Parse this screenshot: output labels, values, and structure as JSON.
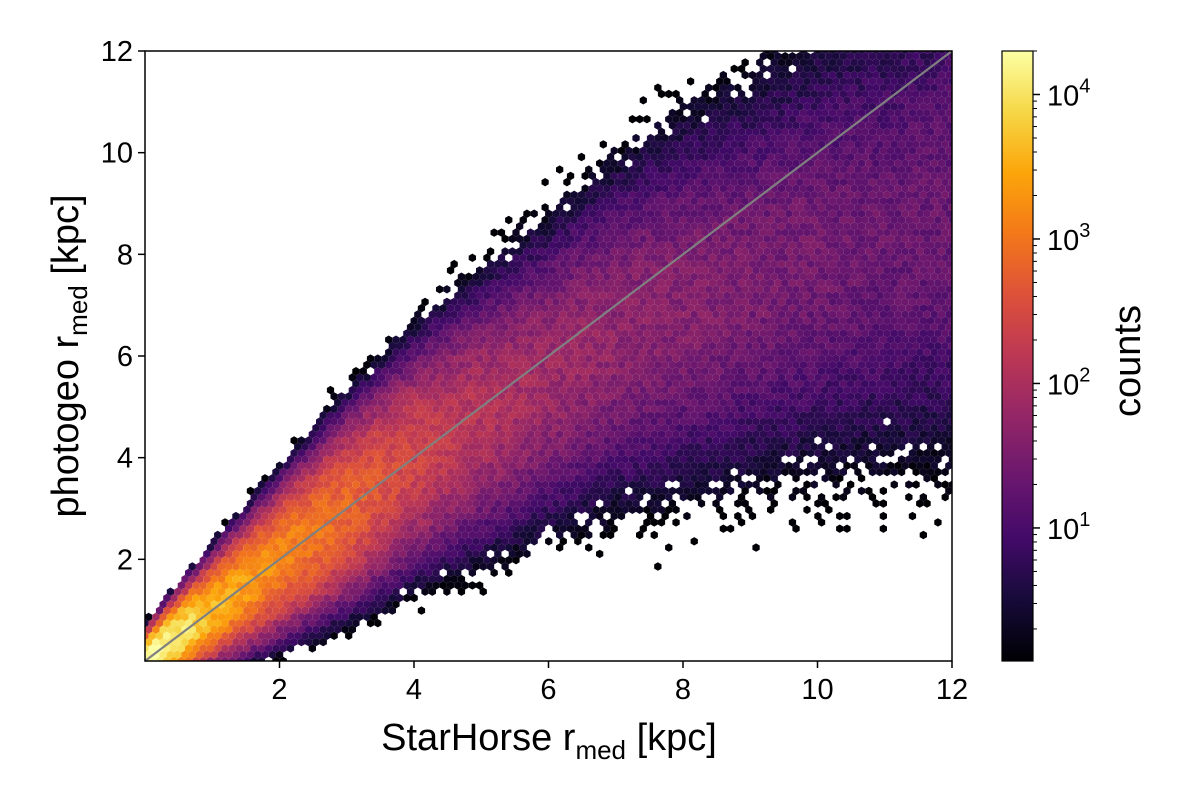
{
  "chart_data": {
    "type": "heatmap",
    "subtype": "hexbin-2d-histogram",
    "title": "",
    "xlabel": {
      "main": "StarHorse r",
      "sub": "med",
      "unit": " [kpc]"
    },
    "ylabel": {
      "main": "photogeo r",
      "sub": "med",
      "unit": " [kpc]"
    },
    "xlim": [
      0,
      12
    ],
    "ylim": [
      0,
      12
    ],
    "x_ticks": [
      {
        "value": 2,
        "label": "2"
      },
      {
        "value": 4,
        "label": "4"
      },
      {
        "value": 6,
        "label": "6"
      },
      {
        "value": 8,
        "label": "8"
      },
      {
        "value": 10,
        "label": "10"
      },
      {
        "value": 12,
        "label": "12"
      }
    ],
    "y_ticks": [
      {
        "value": 2,
        "label": "2"
      },
      {
        "value": 4,
        "label": "4"
      },
      {
        "value": 6,
        "label": "6"
      },
      {
        "value": 8,
        "label": "8"
      },
      {
        "value": 10,
        "label": "10"
      },
      {
        "value": 12,
        "label": "12"
      }
    ],
    "reference_line": {
      "from": [
        0,
        0
      ],
      "to": [
        12,
        12
      ],
      "color": "#808080"
    },
    "colorbar": {
      "label": "counts",
      "scale": "log",
      "colormap": "inferno",
      "range": [
        1.2,
        20000
      ],
      "ticks": [
        {
          "value": 10,
          "base": "10",
          "exp": "1"
        },
        {
          "value": 100,
          "base": "10",
          "exp": "2"
        },
        {
          "value": 1000,
          "base": "10",
          "exp": "3"
        },
        {
          "value": 10000,
          "base": "10",
          "exp": "4"
        }
      ]
    },
    "density_summary": {
      "peak_count": 20000,
      "ridge": "counts concentrate along the one-to-one line, highest near (0.5, 0.5) kpc and decreasing with distance; scatter grows with distance",
      "ridge_points": [
        {
          "x": 0.3,
          "y": 0.3,
          "count": 20000
        },
        {
          "x": 1.0,
          "y": 1.0,
          "count": 4000
        },
        {
          "x": 2.0,
          "y": 2.0,
          "count": 1500
        },
        {
          "x": 3.0,
          "y": 3.0,
          "count": 700
        },
        {
          "x": 4.0,
          "y": 4.0,
          "count": 250
        },
        {
          "x": 5.0,
          "y": 4.8,
          "count": 120
        },
        {
          "x": 6.0,
          "y": 5.6,
          "count": 70
        },
        {
          "x": 7.0,
          "y": 6.4,
          "count": 50
        },
        {
          "x": 8.0,
          "y": 7.0,
          "count": 40
        },
        {
          "x": 9.0,
          "y": 7.5,
          "count": 30
        },
        {
          "x": 10.0,
          "y": 8.0,
          "count": 25
        },
        {
          "x": 11.0,
          "y": 8.4,
          "count": 20
        }
      ]
    }
  },
  "colors": {
    "background": "#ffffff",
    "axes": "#000000",
    "reference_line": "#808080"
  }
}
